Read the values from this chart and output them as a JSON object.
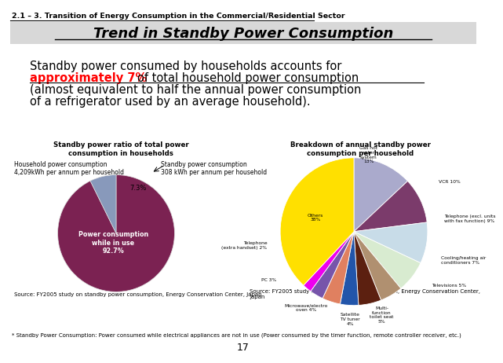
{
  "title": "Trend in Standby Power Consumption",
  "subtitle": "2.1 – 3. Transition of Energy Consumption in the Commercial/Residential Sector",
  "body_text_line1": "O  Standby power consumed by households accounts for",
  "body_text_highlight": "approximately 7%",
  "body_text_line2": " of total household power consumption",
  "body_text_line3": "(almost equivalent to half the annual power consumption",
  "body_text_line4": "of a refrigerator used by an average household).",
  "pie1_title": "Standby power ratio of total power\nconsumption in households",
  "pie1_values": [
    92.7,
    7.3
  ],
  "pie1_colors": [
    "#7B2252",
    "#8899BB"
  ],
  "pie1_label_in": "Power consumption\nwhile in use\n92.7%",
  "pie1_label_out": "7.3%",
  "pie1_ann_left": "Household power consumption\n4,209kWh per annum per household",
  "pie1_ann_right": "Standby power consumption\n308 kWh per annum per household",
  "pie2_title": "Breakdown of annual standby power\nconsumption per household",
  "pie2_values": [
    13,
    10,
    9,
    7,
    5,
    5,
    4,
    4,
    3,
    2,
    38
  ],
  "pie2_colors": [
    "#9999CC",
    "#7B3B6B",
    "#CCDDEE",
    "#BBDDCC",
    "#CC9977",
    "#663311",
    "#3355BB",
    "#DD7766",
    "#7755AA",
    "#EE00EE",
    "#FFDD00"
  ],
  "pie2_startangle": 90,
  "pie2_ext_labels": [
    [
      "Gas hot\nwater\nsystem\n13%",
      0
    ],
    [
      "VCR 10%",
      1
    ],
    [
      "Telephone (excl. units\nwith fax function) 9%",
      2
    ],
    [
      "Cooling/heating air\nconditioners 7%",
      3
    ],
    [
      "Televisions 5%",
      4
    ],
    [
      "Multi-\nfunction\ntoilet seat\n5%",
      5
    ],
    [
      "Satellite\nTV tuner\n4%",
      6
    ],
    [
      "Microwave/electro\noven 4%",
      7
    ],
    [
      "PC 3%",
      8
    ],
    [
      "Telephone\n(extra handset) 2%",
      9
    ],
    [
      "Others\n38%",
      10
    ]
  ],
  "source1": "Source: FY2005 study on standby power consumption, Energy Conservation Center, Japan",
  "source2": "Source: FY2005 study on standby power consumption, Energy Conservation Center,\nJapan",
  "footnote": "* Standby Power Consumption: Power consumed while electrical appliances are not in use (Power consumed by the timer function, remote controller receiver, etc.)",
  "page_number": "17"
}
